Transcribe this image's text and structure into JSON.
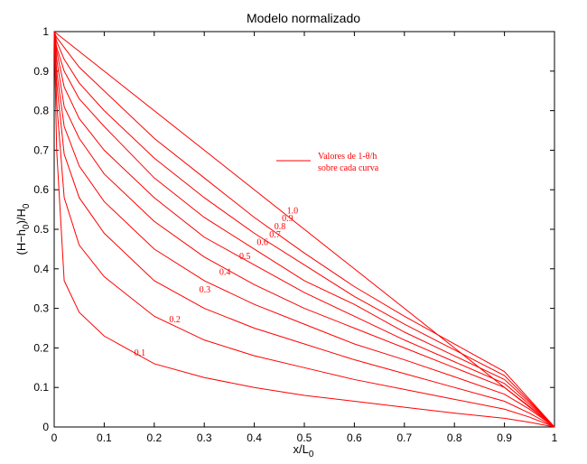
{
  "chart_data": {
    "type": "line",
    "title": "Modelo normalizado",
    "xlabel_main": "x/L",
    "xlabel_sub": "0",
    "ylabel_pre": "(H−h",
    "ylabel_sub1": "0",
    "ylabel_mid": ")/H",
    "ylabel_sub2": "0",
    "xlim": [
      0,
      1
    ],
    "ylim": [
      0,
      1
    ],
    "xticks": [
      "0",
      "0.1",
      "0.2",
      "0.3",
      "0.4",
      "0.5",
      "0.6",
      "0.7",
      "0.8",
      "0.9",
      "1"
    ],
    "yticks": [
      "0",
      "0.1",
      "0.2",
      "0.3",
      "0.4",
      "0.5",
      "0.6",
      "0.7",
      "0.8",
      "0.9",
      "1"
    ],
    "grid": false,
    "legend": {
      "placement": "upper-right",
      "line1": "Valores de 1-θ/h",
      "line2": "sobre cada curva"
    },
    "line_color": "#ff0000",
    "curve_param": [
      0.1,
      0.2,
      0.3,
      0.4,
      0.5,
      0.6,
      0.7,
      0.8,
      0.9,
      1.0
    ],
    "series": [
      {
        "label": "0.1",
        "label_at": [
          0.16,
          0.18
        ],
        "x": [
          0,
          0.005,
          0.02,
          0.05,
          0.1,
          0.2,
          0.3,
          0.4,
          0.5,
          0.6,
          0.7,
          0.8,
          0.9,
          0.95,
          1
        ],
        "y": [
          1,
          0.7,
          0.37,
          0.29,
          0.23,
          0.16,
          0.125,
          0.1,
          0.08,
          0.065,
          0.05,
          0.035,
          0.022,
          0.012,
          0
        ]
      },
      {
        "label": "0.2",
        "label_at": [
          0.23,
          0.265
        ],
        "x": [
          0,
          0.005,
          0.02,
          0.05,
          0.1,
          0.2,
          0.3,
          0.4,
          0.5,
          0.6,
          0.7,
          0.8,
          0.9,
          0.95,
          1
        ],
        "y": [
          1,
          0.82,
          0.58,
          0.46,
          0.38,
          0.28,
          0.22,
          0.18,
          0.15,
          0.12,
          0.095,
          0.07,
          0.045,
          0.025,
          0
        ]
      },
      {
        "label": "0.3",
        "label_at": [
          0.29,
          0.34
        ],
        "x": [
          0,
          0.005,
          0.02,
          0.05,
          0.1,
          0.2,
          0.3,
          0.4,
          0.5,
          0.6,
          0.7,
          0.8,
          0.9,
          0.95,
          1
        ],
        "y": [
          1,
          0.87,
          0.69,
          0.58,
          0.49,
          0.37,
          0.3,
          0.25,
          0.21,
          0.17,
          0.135,
          0.1,
          0.065,
          0.035,
          0
        ]
      },
      {
        "label": "0.4",
        "label_at": [
          0.33,
          0.385
        ],
        "x": [
          0,
          0.005,
          0.02,
          0.05,
          0.1,
          0.2,
          0.3,
          0.4,
          0.5,
          0.6,
          0.7,
          0.8,
          0.9,
          0.95,
          1
        ],
        "y": [
          1,
          0.9,
          0.76,
          0.66,
          0.57,
          0.45,
          0.37,
          0.31,
          0.26,
          0.21,
          0.17,
          0.127,
          0.083,
          0.045,
          0
        ]
      },
      {
        "label": "0.5",
        "label_at": [
          0.37,
          0.425
        ],
        "x": [
          0,
          0.005,
          0.02,
          0.05,
          0.1,
          0.2,
          0.3,
          0.4,
          0.5,
          0.6,
          0.7,
          0.8,
          0.9,
          0.95,
          1
        ],
        "y": [
          1,
          0.93,
          0.81,
          0.73,
          0.64,
          0.52,
          0.43,
          0.36,
          0.3,
          0.25,
          0.2,
          0.15,
          0.1,
          0.052,
          0
        ]
      },
      {
        "label": "0.6",
        "label_at": [
          0.405,
          0.46
        ],
        "x": [
          0,
          0.005,
          0.02,
          0.05,
          0.1,
          0.2,
          0.3,
          0.4,
          0.5,
          0.6,
          0.7,
          0.8,
          0.9,
          0.95,
          1
        ],
        "y": [
          1,
          0.95,
          0.86,
          0.78,
          0.7,
          0.58,
          0.48,
          0.41,
          0.34,
          0.28,
          0.22,
          0.165,
          0.11,
          0.057,
          0
        ]
      },
      {
        "label": "0.7",
        "label_at": [
          0.43,
          0.48
        ],
        "x": [
          0,
          0.005,
          0.02,
          0.05,
          0.1,
          0.2,
          0.3,
          0.4,
          0.5,
          0.6,
          0.7,
          0.8,
          0.9,
          0.95,
          1
        ],
        "y": [
          1,
          0.96,
          0.9,
          0.83,
          0.76,
          0.63,
          0.53,
          0.45,
          0.37,
          0.31,
          0.24,
          0.18,
          0.12,
          0.062,
          0
        ]
      },
      {
        "label": "0.8",
        "label_at": [
          0.44,
          0.5
        ],
        "x": [
          0,
          0.005,
          0.02,
          0.05,
          0.1,
          0.2,
          0.3,
          0.4,
          0.5,
          0.6,
          0.7,
          0.8,
          0.9,
          0.95,
          1
        ],
        "y": [
          1,
          0.975,
          0.93,
          0.87,
          0.8,
          0.68,
          0.58,
          0.49,
          0.41,
          0.33,
          0.26,
          0.195,
          0.13,
          0.066,
          0
        ]
      },
      {
        "label": "0.9",
        "label_at": [
          0.455,
          0.52
        ],
        "x": [
          0,
          0.005,
          0.02,
          0.05,
          0.1,
          0.2,
          0.3,
          0.4,
          0.5,
          0.6,
          0.7,
          0.8,
          0.9,
          0.95,
          1
        ],
        "y": [
          1,
          0.985,
          0.96,
          0.91,
          0.85,
          0.73,
          0.63,
          0.53,
          0.44,
          0.355,
          0.28,
          0.21,
          0.14,
          0.07,
          0
        ]
      },
      {
        "label": "1.0",
        "label_at": [
          0.465,
          0.54
        ],
        "x": [
          0,
          1
        ],
        "y": [
          1,
          0
        ]
      }
    ]
  }
}
